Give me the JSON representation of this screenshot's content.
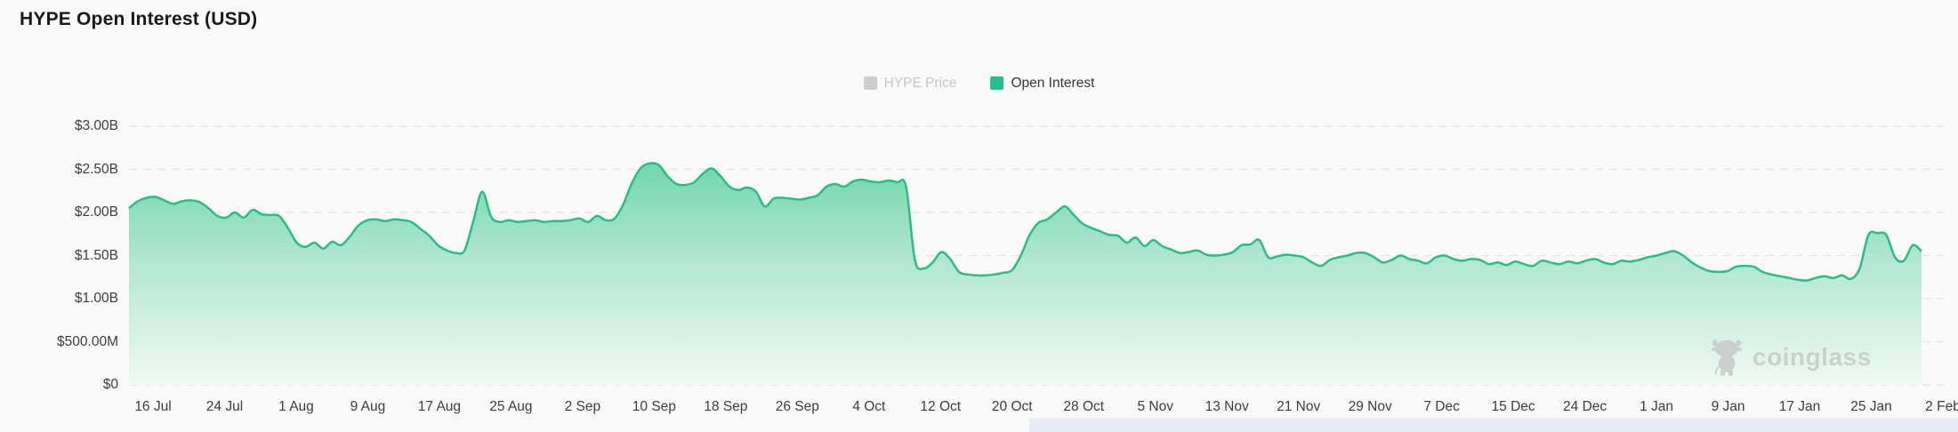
{
  "header": {
    "title": "HYPE Open Interest (USD)"
  },
  "legend": {
    "items": [
      {
        "label": "HYPE Price",
        "swatch_color": "#cdcdcd",
        "active": false
      },
      {
        "label": "Open Interest",
        "swatch_color": "#2abd87",
        "active": true
      }
    ]
  },
  "watermark": {
    "label": "coinglass"
  },
  "colors": {
    "accent_green": "#2abd87",
    "area_fill_top": "#6fd6ab",
    "area_fill_mid": "#b2e7d1",
    "area_fill_bottom": "#f0f9f5",
    "gridline": "#e6e6e6",
    "scrollbar": "#e8ecf6",
    "axis_text": "#3d3d3d",
    "disabled_text": "#c7c7c7"
  },
  "chart_data": {
    "type": "area",
    "title": "HYPE Open Interest (USD)",
    "unit": "USD",
    "legend_position": "top-center",
    "grid": "dashed-horizontal",
    "ylim_usd": [
      0,
      3000000000
    ],
    "y_ticks": [
      {
        "value": 0.0,
        "label": "$0"
      },
      {
        "value": 0.5,
        "label": "$500.00M"
      },
      {
        "value": 1.0,
        "label": "$1.00B"
      },
      {
        "value": 1.5,
        "label": "$1.50B"
      },
      {
        "value": 2.0,
        "label": "$2.00B"
      },
      {
        "value": 2.5,
        "label": "$2.50B"
      },
      {
        "value": 3.0,
        "label": "$3.00B"
      }
    ],
    "x_tick_labels": [
      "16 Jul",
      "24 Jul",
      "1 Aug",
      "9 Aug",
      "17 Aug",
      "25 Aug",
      "2 Sep",
      "10 Sep",
      "18 Sep",
      "26 Sep",
      "4 Oct",
      "12 Oct",
      "20 Oct",
      "28 Oct",
      "5 Nov",
      "13 Nov",
      "21 Nov",
      "29 Nov",
      "7 Dec",
      "15 Dec",
      "24 Dec",
      "1 Jan",
      "9 Jan",
      "17 Jan",
      "25 Jan",
      "2 Feb"
    ],
    "series": [
      {
        "name": "Open Interest",
        "visible": true,
        "color": "#2abd87",
        "start_date": "14 Jul",
        "end_date": "2 Feb",
        "interval": "daily",
        "values_billion_usd": [
          2.05,
          2.13,
          2.17,
          2.18,
          2.14,
          2.1,
          2.13,
          2.14,
          2.12,
          2.05,
          1.96,
          1.94,
          2.0,
          1.94,
          2.03,
          1.98,
          1.97,
          1.96,
          1.82,
          1.65,
          1.6,
          1.65,
          1.58,
          1.66,
          1.62,
          1.72,
          1.85,
          1.91,
          1.92,
          1.9,
          1.92,
          1.91,
          1.89,
          1.81,
          1.73,
          1.62,
          1.56,
          1.53,
          1.56,
          1.9,
          2.24,
          1.95,
          1.89,
          1.91,
          1.89,
          1.9,
          1.91,
          1.89,
          1.9,
          1.9,
          1.91,
          1.93,
          1.89,
          1.96,
          1.91,
          1.93,
          2.1,
          2.35,
          2.52,
          2.57,
          2.55,
          2.42,
          2.33,
          2.32,
          2.35,
          2.45,
          2.51,
          2.42,
          2.3,
          2.26,
          2.29,
          2.24,
          2.07,
          2.16,
          2.17,
          2.16,
          2.15,
          2.17,
          2.2,
          2.3,
          2.33,
          2.3,
          2.36,
          2.38,
          2.36,
          2.35,
          2.37,
          2.35,
          2.3,
          1.45,
          1.35,
          1.42,
          1.54,
          1.46,
          1.31,
          1.28,
          1.27,
          1.27,
          1.28,
          1.3,
          1.33,
          1.5,
          1.74,
          1.88,
          1.92,
          2.0,
          2.07,
          1.97,
          1.87,
          1.82,
          1.78,
          1.74,
          1.73,
          1.65,
          1.71,
          1.61,
          1.68,
          1.61,
          1.57,
          1.53,
          1.54,
          1.56,
          1.51,
          1.5,
          1.51,
          1.54,
          1.62,
          1.63,
          1.68,
          1.48,
          1.49,
          1.51,
          1.5,
          1.48,
          1.42,
          1.38,
          1.45,
          1.48,
          1.5,
          1.53,
          1.53,
          1.48,
          1.42,
          1.45,
          1.5,
          1.46,
          1.44,
          1.41,
          1.48,
          1.5,
          1.46,
          1.44,
          1.46,
          1.45,
          1.4,
          1.42,
          1.39,
          1.43,
          1.4,
          1.38,
          1.44,
          1.42,
          1.4,
          1.43,
          1.41,
          1.44,
          1.46,
          1.42,
          1.4,
          1.44,
          1.43,
          1.45,
          1.48,
          1.5,
          1.53,
          1.55,
          1.5,
          1.42,
          1.36,
          1.32,
          1.31,
          1.32,
          1.37,
          1.38,
          1.37,
          1.31,
          1.28,
          1.26,
          1.24,
          1.22,
          1.21,
          1.24,
          1.26,
          1.24,
          1.27,
          1.23,
          1.35,
          1.74,
          1.76,
          1.74,
          1.48,
          1.44,
          1.62,
          1.55
        ]
      },
      {
        "name": "HYPE Price",
        "visible": false
      }
    ]
  }
}
